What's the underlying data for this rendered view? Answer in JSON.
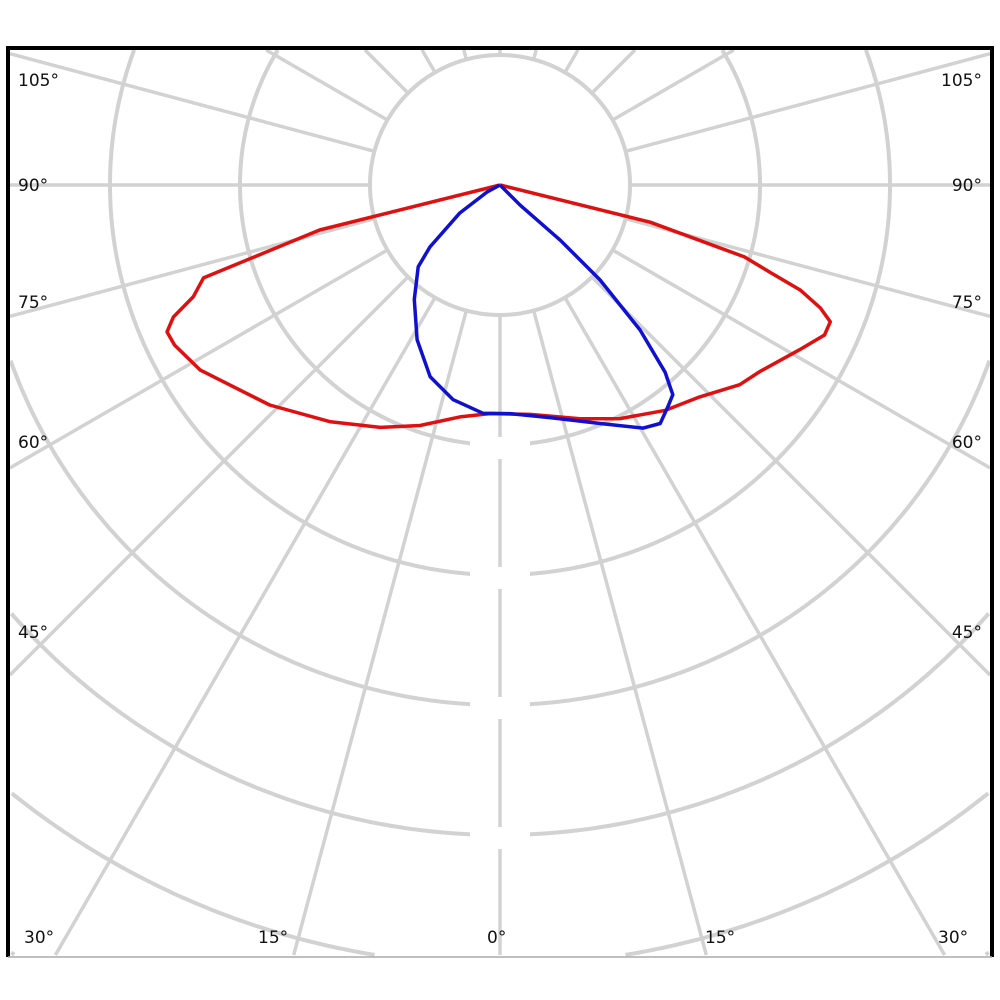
{
  "chart_data": {
    "type": "polar-line",
    "title": "",
    "angle_unit": "degrees",
    "angle_zero": "bottom",
    "radial_scale": "relative (unlabeled rings)",
    "grid": true,
    "angle_labels_left": [
      "105°",
      "90°",
      "75°",
      "60°",
      "45°",
      "30°"
    ],
    "angle_labels_right": [
      "105°",
      "90°",
      "75°",
      "60°",
      "45°",
      "30°"
    ],
    "angle_labels_bottom": [
      "30°",
      "15°",
      "0°",
      "15°",
      "30°"
    ],
    "series": [
      {
        "color": "#e01010",
        "points": [
          [
            -90,
            0
          ],
          [
            -76,
            1.43
          ],
          [
            -72.6,
            2.39
          ],
          [
            -70,
            2.51
          ],
          [
            -68,
            2.71
          ],
          [
            -66.2,
            2.8
          ],
          [
            -63.8,
            2.79
          ],
          [
            -58.3,
            2.71
          ],
          [
            -46.3,
            2.45
          ],
          [
            -35.6,
            2.24
          ],
          [
            -26.3,
            2.08
          ],
          [
            -18.4,
            1.95
          ],
          [
            -9.8,
            1.81
          ],
          [
            -2.5,
            1.76
          ],
          [
            7.5,
            1.78
          ],
          [
            18.9,
            1.9
          ],
          [
            27.2,
            2.02
          ],
          [
            36.3,
            2.15
          ],
          [
            43.3,
            2.24
          ],
          [
            50.2,
            2.4
          ],
          [
            54.3,
            2.46
          ],
          [
            61.2,
            2.63
          ],
          [
            65.2,
            2.75
          ],
          [
            67.5,
            2.75
          ],
          [
            69,
            2.64
          ],
          [
            70.7,
            2.45
          ],
          [
            72.1,
            2.18
          ],
          [
            73.6,
            1.96
          ],
          [
            76.1,
            1.19
          ],
          [
            90,
            0
          ]
        ]
      },
      {
        "color": "#1010d0",
        "points": [
          [
            -65,
            0
          ],
          [
            -61.7,
            0.11
          ],
          [
            -55,
            0.38
          ],
          [
            -48.5,
            0.72
          ],
          [
            -45,
            0.89
          ],
          [
            -36.8,
            1.1
          ],
          [
            -28.2,
            1.35
          ],
          [
            -20,
            1.57
          ],
          [
            -12.3,
            1.69
          ],
          [
            -4.3,
            1.76
          ],
          [
            2.5,
            1.76
          ],
          [
            12.1,
            1.83
          ],
          [
            22.8,
            1.99
          ],
          [
            30.5,
            2.17
          ],
          [
            33.9,
            2.21
          ],
          [
            37.1,
            2.14
          ],
          [
            39.5,
            2.09
          ],
          [
            41.4,
            1.92
          ],
          [
            44,
            1.55
          ],
          [
            46.5,
            1.06
          ],
          [
            47.5,
            0.63
          ],
          [
            45,
            0.22
          ],
          [
            50,
            0
          ]
        ]
      }
    ],
    "colors": {
      "grid": "#d2d2d2",
      "frame": "#000000"
    }
  }
}
